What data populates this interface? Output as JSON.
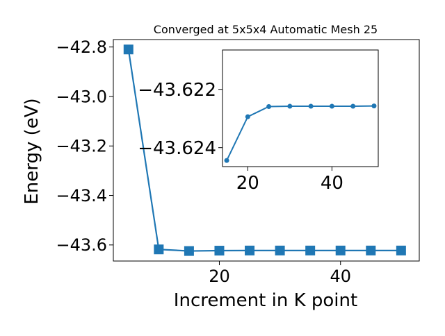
{
  "chart_data": [
    {
      "type": "line",
      "title": "Converged at 5x5x4 Automatic Mesh 25",
      "xlabel": "Increment in K point",
      "ylabel": "Energy (eV)",
      "x": [
        5,
        10,
        15,
        20,
        25,
        30,
        35,
        40,
        45,
        50
      ],
      "series": [
        {
          "values": [
            -42.81,
            -43.618,
            -43.6245,
            -43.623,
            -43.6225,
            -43.6225,
            -43.6225,
            -43.6225,
            -43.6225,
            -43.6225
          ],
          "color": "#1f77b4",
          "marker": "square"
        }
      ],
      "xlim": [
        2.5,
        53
      ],
      "ylim": [
        -43.665,
        -42.77
      ],
      "xticks": [
        20,
        40
      ],
      "xtick_labels": [
        "20",
        "40"
      ],
      "yticks": [
        -42.8,
        -43.0,
        -43.2,
        -43.4,
        -43.6
      ],
      "ytick_labels": [
        "−42.8",
        "−43.0",
        "−43.2",
        "−43.4",
        "−43.6"
      ],
      "grid": false
    },
    {
      "type": "line",
      "x": [
        15,
        20,
        25,
        30,
        35,
        40,
        45,
        50
      ],
      "series": [
        {
          "values": [
            -43.62444,
            -43.62294,
            -43.62259,
            -43.62258,
            -43.62258,
            -43.62258,
            -43.62258,
            -43.62257
          ],
          "color": "#1f77b4",
          "marker": "circle"
        }
      ],
      "xlim": [
        14,
        51
      ],
      "ylim": [
        -43.62465,
        -43.62065
      ],
      "xticks": [
        20,
        40
      ],
      "xtick_labels": [
        "20",
        "40"
      ],
      "yticks": [
        -43.624,
        -43.622
      ],
      "ytick_labels": [
        "−43.624",
        "−43.622"
      ],
      "grid": false
    }
  ]
}
